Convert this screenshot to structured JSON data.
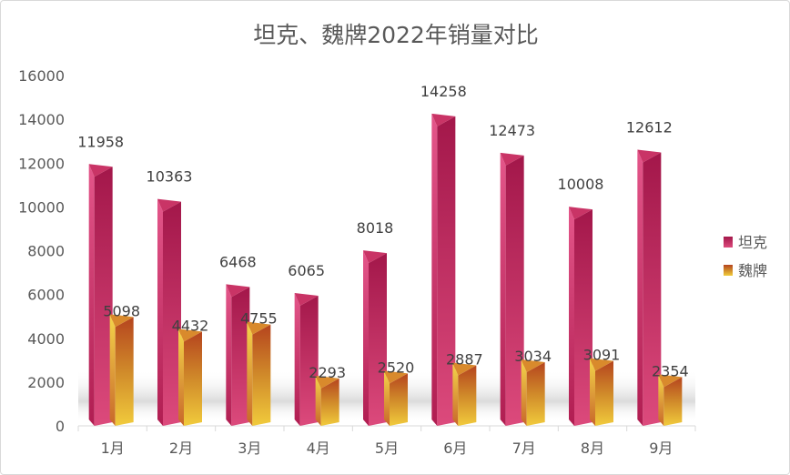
{
  "chart_data": {
    "type": "bar",
    "title": "坦克、魏牌2022年销量对比",
    "categories": [
      "1月",
      "2月",
      "3月",
      "4月",
      "5月",
      "6月",
      "7月",
      "8月",
      "9月"
    ],
    "series": [
      {
        "name": "坦克",
        "values": [
          11958,
          10363,
          6468,
          6065,
          8018,
          14258,
          12473,
          10008,
          12612
        ],
        "color": "#c8285e"
      },
      {
        "name": "魏牌",
        "values": [
          5098,
          4432,
          4755,
          2293,
          2520,
          2887,
          3034,
          3091,
          2354
        ],
        "color": "#d9822b"
      }
    ],
    "ylim": [
      0,
      16000
    ],
    "yticks": [
      0,
      2000,
      4000,
      6000,
      8000,
      10000,
      12000,
      14000,
      16000
    ],
    "legend": "right",
    "grid": false,
    "style": "3d-pyramid-prism"
  }
}
